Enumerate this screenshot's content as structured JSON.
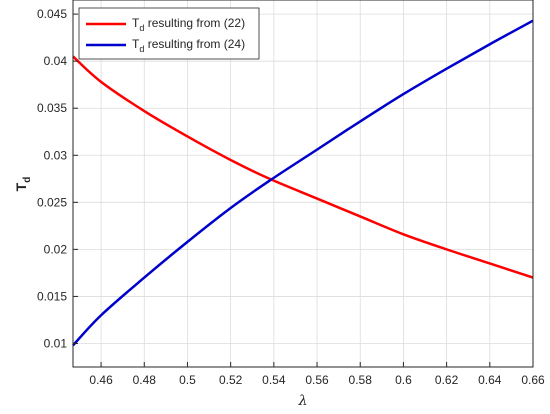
{
  "chart_data": {
    "type": "line",
    "xlabel": "λ",
    "ylabel": "T",
    "ylabel_sub": "d",
    "xlim": [
      0.447,
      0.66
    ],
    "ylim": [
      0.0075,
      0.0465
    ],
    "x_ticks": [
      0.46,
      0.48,
      0.5,
      0.52,
      0.54,
      0.56,
      0.58,
      0.6,
      0.62,
      0.64,
      0.66
    ],
    "x_tick_labels": [
      "0.46",
      "0.48",
      "0.5",
      "0.52",
      "0.54",
      "0.56",
      "0.58",
      "0.6",
      "0.62",
      "0.64",
      "0.66"
    ],
    "y_ticks": [
      0.01,
      0.015,
      0.02,
      0.025,
      0.03,
      0.035,
      0.04,
      0.045
    ],
    "y_tick_labels": [
      "0.01",
      "0.015",
      "0.02",
      "0.025",
      "0.03",
      "0.035",
      "0.04",
      "0.045"
    ],
    "grid": true,
    "legend_position": "top-left",
    "series": [
      {
        "name": "T",
        "name_sub": "d",
        "name_rest": " resulting from (22)",
        "color": "#ff0000",
        "x": [
          0.447,
          0.46,
          0.48,
          0.5,
          0.52,
          0.538,
          0.56,
          0.58,
          0.6,
          0.62,
          0.64,
          0.66
        ],
        "y": [
          0.0405,
          0.0378,
          0.0347,
          0.032,
          0.0295,
          0.0275,
          0.0254,
          0.0235,
          0.0216,
          0.02,
          0.0185,
          0.017
        ]
      },
      {
        "name": "T",
        "name_sub": "d",
        "name_rest": " resulting from (24)",
        "color": "#0000cc",
        "x": [
          0.447,
          0.46,
          0.48,
          0.5,
          0.52,
          0.538,
          0.56,
          0.58,
          0.6,
          0.62,
          0.64,
          0.66
        ],
        "y": [
          0.0098,
          0.013,
          0.017,
          0.0208,
          0.0244,
          0.0273,
          0.0306,
          0.0336,
          0.0365,
          0.0392,
          0.0418,
          0.0443
        ]
      }
    ]
  }
}
